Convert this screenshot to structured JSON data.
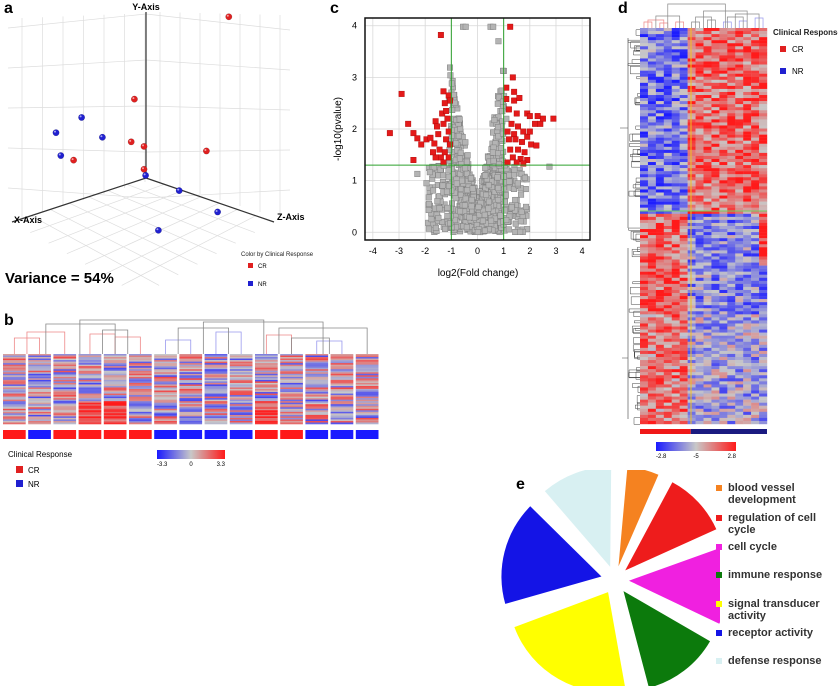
{
  "panel_labels": {
    "a": "a",
    "b": "b",
    "c": "c",
    "d": "d",
    "e": "e"
  },
  "chart_data": [
    {
      "id": "a",
      "type": "scatter",
      "subtype": "3d-pca",
      "axis_labels": {
        "x": "X-Axis",
        "y": "Y-Axis",
        "z": "Z-Axis"
      },
      "annotation": "Variance = 54%",
      "legend": {
        "title": "Color by Clinical Response",
        "entries": [
          {
            "name": "CR",
            "color": "#e02020"
          },
          {
            "name": "NR",
            "color": "#2020d0"
          }
        ],
        "placement": "bottom-right"
      },
      "points_projected_note": "positions read as 2D projection of the 3D view",
      "points": [
        {
          "group": "CR",
          "u": 0.715,
          "v": 0.055
        },
        {
          "group": "CR",
          "u": 0.42,
          "v": 0.325
        },
        {
          "group": "CR",
          "u": 0.41,
          "v": 0.465
        },
        {
          "group": "CR",
          "u": 0.45,
          "v": 0.48
        },
        {
          "group": "CR",
          "u": 0.45,
          "v": 0.555
        },
        {
          "group": "CR",
          "u": 0.23,
          "v": 0.525
        },
        {
          "group": "CR",
          "u": 0.645,
          "v": 0.495
        },
        {
          "group": "NR",
          "u": 0.255,
          "v": 0.385
        },
        {
          "group": "NR",
          "u": 0.175,
          "v": 0.435
        },
        {
          "group": "NR",
          "u": 0.32,
          "v": 0.45
        },
        {
          "group": "NR",
          "u": 0.19,
          "v": 0.51
        },
        {
          "group": "NR",
          "u": 0.455,
          "v": 0.575
        },
        {
          "group": "NR",
          "u": 0.56,
          "v": 0.625
        },
        {
          "group": "NR",
          "u": 0.68,
          "v": 0.695
        },
        {
          "group": "NR",
          "u": 0.495,
          "v": 0.755
        }
      ]
    },
    {
      "id": "b",
      "type": "heatmap",
      "samples": 15,
      "sample_groups": [
        "CR",
        "NR",
        "CR",
        "CR",
        "CR",
        "CR",
        "NR",
        "NR",
        "NR",
        "NR",
        "CR",
        "CR",
        "NR",
        "NR",
        "NR"
      ],
      "colorbar": {
        "min": "-3.3",
        "mid": "0",
        "max": "3.3",
        "colors": [
          "#1a1aff",
          "#c8c8c8",
          "#ff1a1a"
        ]
      },
      "legend": {
        "title": "Clinical Response",
        "entries": [
          {
            "name": "CR",
            "color": "#e02020"
          },
          {
            "name": "NR",
            "color": "#2020d0"
          }
        ]
      }
    },
    {
      "id": "c",
      "type": "scatter",
      "subtype": "volcano",
      "xlabel": "log2(Fold change)",
      "ylabel": "-log10(pvalue)",
      "xlim": [
        -4.3,
        4.3
      ],
      "ylim": [
        -0.15,
        4.15
      ],
      "xticks": [
        "-4",
        "-3",
        "-2",
        "-1",
        "0",
        "1",
        "2",
        "3",
        "4"
      ],
      "yticks": [
        "0",
        "1",
        "2",
        "3",
        "4"
      ],
      "thresholds": {
        "x": [
          -1,
          1
        ],
        "y": 1.3,
        "color": "#2ca02c"
      },
      "grid": true,
      "colors": {
        "significant": "#e41a1a",
        "not_significant": "#b4b4b4"
      },
      "significant_points": [
        [
          -1.4,
          3.82
        ],
        [
          -2.9,
          2.68
        ],
        [
          -3.35,
          1.92
        ],
        [
          -2.65,
          2.1
        ],
        [
          -2.45,
          1.4
        ],
        [
          -2.45,
          1.92
        ],
        [
          -2.3,
          1.82
        ],
        [
          -2.15,
          1.7
        ],
        [
          -1.95,
          1.8
        ],
        [
          -1.8,
          1.83
        ],
        [
          -1.65,
          1.72
        ],
        [
          -1.6,
          2.15
        ],
        [
          -1.55,
          2.05
        ],
        [
          -1.5,
          1.9
        ],
        [
          -1.45,
          1.6
        ],
        [
          -1.4,
          1.45
        ],
        [
          -1.3,
          2.73
        ],
        [
          -1.25,
          2.5
        ],
        [
          -1.1,
          2.65
        ],
        [
          -1.05,
          2.55
        ],
        [
          -1.35,
          2.3
        ],
        [
          -1.2,
          2.35
        ],
        [
          -1.15,
          2.2
        ],
        [
          -1.3,
          2.1
        ],
        [
          -1.1,
          1.95
        ],
        [
          -1.2,
          1.8
        ],
        [
          -1.05,
          1.7
        ],
        [
          -1.25,
          1.55
        ],
        [
          -1.1,
          1.45
        ],
        [
          -1.3,
          1.35
        ],
        [
          -1.6,
          1.45
        ],
        [
          -1.7,
          1.55
        ],
        [
          1.25,
          3.98
        ],
        [
          1.35,
          3.0
        ],
        [
          1.1,
          2.8
        ],
        [
          1.4,
          2.72
        ],
        [
          1.1,
          2.58
        ],
        [
          1.4,
          2.55
        ],
        [
          1.6,
          2.6
        ],
        [
          1.2,
          2.38
        ],
        [
          1.5,
          2.3
        ],
        [
          1.9,
          2.3
        ],
        [
          2.0,
          2.25
        ],
        [
          2.3,
          2.25
        ],
        [
          2.5,
          2.2
        ],
        [
          2.9,
          2.2
        ],
        [
          2.2,
          2.1
        ],
        [
          2.4,
          2.1
        ],
        [
          1.3,
          2.1
        ],
        [
          1.55,
          2.05
        ],
        [
          1.15,
          1.95
        ],
        [
          1.4,
          1.9
        ],
        [
          1.75,
          1.95
        ],
        [
          1.9,
          1.85
        ],
        [
          2.0,
          1.95
        ],
        [
          1.2,
          1.8
        ],
        [
          1.45,
          1.8
        ],
        [
          1.7,
          1.75
        ],
        [
          2.05,
          1.7
        ],
        [
          2.25,
          1.68
        ],
        [
          1.25,
          1.6
        ],
        [
          1.55,
          1.6
        ],
        [
          1.8,
          1.55
        ],
        [
          1.35,
          1.45
        ],
        [
          1.65,
          1.42
        ],
        [
          1.9,
          1.4
        ],
        [
          1.15,
          1.35
        ],
        [
          1.5,
          1.35
        ],
        [
          1.75,
          1.33
        ]
      ],
      "notable_nonsignificant_points": [
        [
          -0.55,
          3.98
        ],
        [
          -0.45,
          3.98
        ],
        [
          0.5,
          3.98
        ],
        [
          0.6,
          3.98
        ],
        [
          0.8,
          3.7
        ],
        [
          2.75,
          1.27
        ],
        [
          -2.3,
          1.13
        ],
        [
          -1.95,
          0.95
        ]
      ]
    },
    {
      "id": "d",
      "type": "heatmap",
      "sample_groups_bar": {
        "CR_fraction": 0.4,
        "colors": {
          "CR": "#f01818",
          "NR": "#1a1a80"
        }
      },
      "colorbar": {
        "min": "-2.8",
        "mid": "-5",
        "max": "2.8",
        "colors": [
          "#1a1aff",
          "#c8c8c8",
          "#ff1a1a"
        ]
      },
      "legend": {
        "title": "Clinical Response",
        "entries": [
          {
            "name": "CR",
            "color": "#e02020"
          },
          {
            "name": "NR",
            "color": "#2020d0"
          }
        ]
      }
    },
    {
      "id": "e",
      "type": "pie",
      "exploded": true,
      "slices": [
        {
          "label": "blood vessel development",
          "value": 6,
          "color": "#f58220"
        },
        {
          "label": "regulation of cell cycle",
          "value": 11,
          "color": "#ee1c1c"
        },
        {
          "label": "cell cycle",
          "value": 13,
          "color": "#f020e0"
        },
        {
          "label": "immune response",
          "value": 13,
          "color": "#0c7a0c"
        },
        {
          "label": "signal transducer activity",
          "value": 22,
          "color": "#ffff00"
        },
        {
          "label": "receptor activity",
          "value": 17,
          "color": "#1414e6"
        },
        {
          "label": "defense response",
          "value": 12,
          "color": "#d8f0f2"
        }
      ],
      "legend_placement": "right"
    }
  ]
}
